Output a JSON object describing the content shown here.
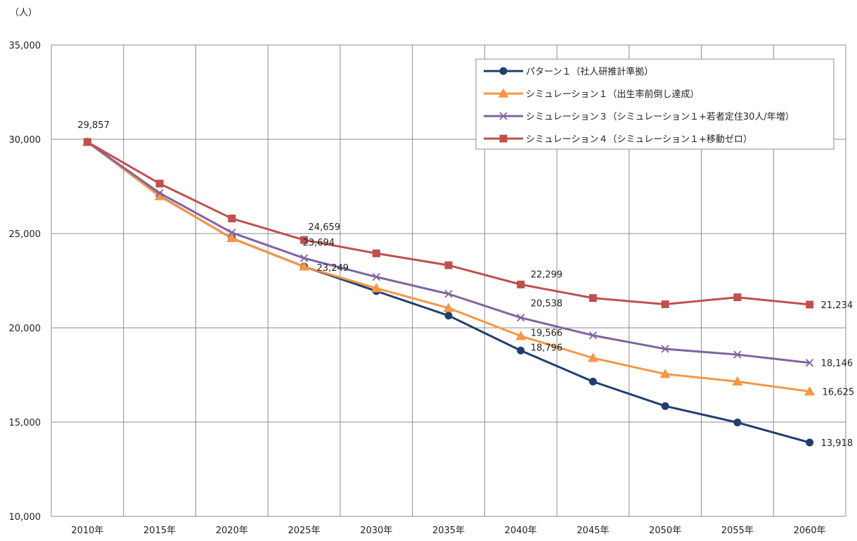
{
  "chart_data": {
    "type": "line",
    "title": "",
    "ylabel": "（人）",
    "xlabel": "",
    "ylim": [
      10000,
      35000
    ],
    "yticks": [
      10000,
      15000,
      20000,
      25000,
      30000,
      35000
    ],
    "ytick_labels": [
      "10,000",
      "15,000",
      "20,000",
      "25,000",
      "30,000",
      "35,000"
    ],
    "categories": [
      "2010年",
      "2015年",
      "2020年",
      "2025年",
      "2030年",
      "2035年",
      "2040年",
      "2045年",
      "2050年",
      "2055年",
      "2060年"
    ],
    "grid": true,
    "legend_position": "top-right",
    "series": [
      {
        "name": "パターン１（社人研推計準拠）",
        "color": "#1f3e6e",
        "marker": "circle",
        "values": [
          29857,
          27000,
          24750,
          23249,
          21950,
          20650,
          18796,
          17150,
          15850,
          14980,
          13918
        ]
      },
      {
        "name": "シミュレーション１（出生率前倒し達成）",
        "color": "#f79646",
        "marker": "triangle",
        "values": [
          29857,
          26980,
          24760,
          23249,
          22100,
          21050,
          19566,
          18400,
          17550,
          17150,
          16625
        ]
      },
      {
        "name": "シミュレーション３（シミュレーション１+若者定住30人/年増）",
        "color": "#8064a2",
        "marker": "x",
        "values": [
          29857,
          27150,
          25050,
          23694,
          22700,
          21800,
          20538,
          19600,
          18880,
          18580,
          18146
        ]
      },
      {
        "name": "シミュレーション４（シミュレーション１+移動ゼロ）",
        "color": "#c0504d",
        "marker": "square",
        "values": [
          29857,
          27650,
          25800,
          24659,
          23950,
          23320,
          22299,
          21580,
          21250,
          21620,
          21234
        ]
      }
    ],
    "data_labels": [
      {
        "series": 0,
        "index": 0,
        "text": "29,857"
      },
      {
        "series": 3,
        "index": 3,
        "text": "24,659"
      },
      {
        "series": 2,
        "index": 3,
        "text": "23,694"
      },
      {
        "series": 0,
        "index": 3,
        "text": "23,249"
      },
      {
        "series": 3,
        "index": 6,
        "text": "22,299"
      },
      {
        "series": 2,
        "index": 6,
        "text": "20,538"
      },
      {
        "series": 1,
        "index": 6,
        "text": "19,566"
      },
      {
        "series": 0,
        "index": 6,
        "text": "18,796"
      },
      {
        "series": 3,
        "index": 10,
        "text": "21,234"
      },
      {
        "series": 2,
        "index": 10,
        "text": "18,146"
      },
      {
        "series": 1,
        "index": 10,
        "text": "16,625"
      },
      {
        "series": 0,
        "index": 10,
        "text": "13,918"
      }
    ]
  }
}
